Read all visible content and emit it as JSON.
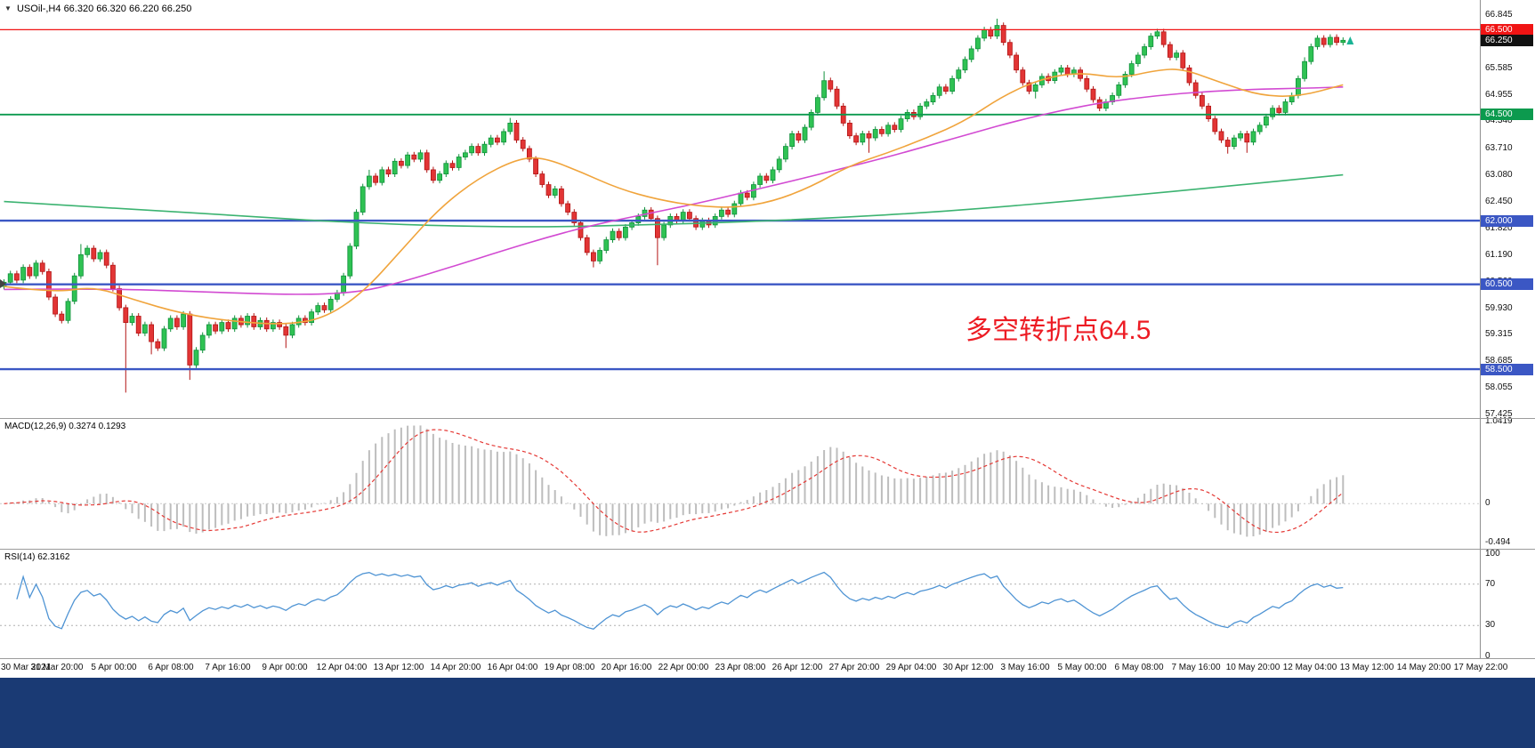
{
  "header": {
    "collapse_icon": "▼",
    "symbol": "USOil-,H4",
    "ohlc": "66.320 66.320 66.220 66.250"
  },
  "window": {
    "bottom_bar_color": "#1a3a74"
  },
  "chart_data": {
    "type": "candlestick",
    "symbol": "USOil",
    "timeframe": "H4",
    "colors": {
      "bull": "#2fc253",
      "bull_border": "#11913c",
      "bear": "#e23535",
      "bear_border": "#b31414",
      "macd_hist": "#bdbdbd",
      "macd_signal": "#e53935",
      "rsi_line": "#4f94d4",
      "guide_dotted": "#b0b0b0",
      "annotation": "#ed1c24",
      "arrow": "#19b394",
      "left_marker": "#444444"
    },
    "price_axis_labels": [
      "66.845",
      "65.585",
      "64.955",
      "64.340",
      "63.710",
      "63.080",
      "62.450",
      "61.820",
      "61.190",
      "60.560",
      "59.930",
      "59.315",
      "58.685",
      "58.055",
      "57.425"
    ],
    "current_price": {
      "value": "66.250",
      "price": 66.25,
      "badge": "#111111"
    },
    "level_lines": [
      {
        "price": 66.5,
        "label": "66.500",
        "color": "#f01414",
        "width": 1.2
      },
      {
        "price": 64.5,
        "label": "64.500",
        "color": "#0c9a4e",
        "width": 1.8
      },
      {
        "price": 62.0,
        "label": "62.000",
        "color": "#3b57c4",
        "width": 2.4
      },
      {
        "price": 60.5,
        "label": "60.500",
        "color": "#3b57c4",
        "width": 2.4
      },
      {
        "price": 58.5,
        "label": "58.500",
        "color": "#3b57c4",
        "width": 2.4
      }
    ],
    "candles": {
      "first_open": 60.45,
      "wick": 0.07,
      "wicks_up": {
        "12": 0.25,
        "57": 0.15,
        "79": 0.12,
        "128": 0.22,
        "155": 0.16,
        "180": 0.07,
        "203": 0.1
      },
      "wicks_down": {
        "19": 1.65,
        "23": 0.3,
        "29": 0.35,
        "44": 0.3,
        "92": 0.15,
        "102": 0.65,
        "135": 0.35,
        "161": 0.17,
        "191": 0.17,
        "194": 0.25
      },
      "closes": [
        60.55,
        60.75,
        60.6,
        60.9,
        60.7,
        61.0,
        60.8,
        60.2,
        59.8,
        59.65,
        60.1,
        60.7,
        61.2,
        61.35,
        61.1,
        61.25,
        60.95,
        60.4,
        59.95,
        59.6,
        59.75,
        59.35,
        59.55,
        59.15,
        59.0,
        59.45,
        59.7,
        59.5,
        59.8,
        58.6,
        58.95,
        59.3,
        59.55,
        59.4,
        59.6,
        59.45,
        59.7,
        59.55,
        59.75,
        59.5,
        59.65,
        59.45,
        59.6,
        59.5,
        59.3,
        59.55,
        59.7,
        59.6,
        59.85,
        60.0,
        59.9,
        60.15,
        60.3,
        60.7,
        61.4,
        62.2,
        62.8,
        63.05,
        62.9,
        63.2,
        63.1,
        63.4,
        63.3,
        63.55,
        63.45,
        63.6,
        63.2,
        62.95,
        63.1,
        63.35,
        63.25,
        63.5,
        63.6,
        63.75,
        63.6,
        63.8,
        63.95,
        63.85,
        64.1,
        64.3,
        63.9,
        63.7,
        63.45,
        63.1,
        62.85,
        62.6,
        62.75,
        62.4,
        62.2,
        61.95,
        61.6,
        61.25,
        61.05,
        61.3,
        61.55,
        61.75,
        61.6,
        61.85,
        61.95,
        62.1,
        62.25,
        62.05,
        61.6,
        61.9,
        62.1,
        62.0,
        62.2,
        62.05,
        61.85,
        62.0,
        61.9,
        62.1,
        62.25,
        62.15,
        62.4,
        62.65,
        62.55,
        62.85,
        63.05,
        62.95,
        63.2,
        63.45,
        63.75,
        64.05,
        63.9,
        64.2,
        64.55,
        64.9,
        65.3,
        65.1,
        64.7,
        64.3,
        64.0,
        63.85,
        64.05,
        63.95,
        64.15,
        64.05,
        64.25,
        64.15,
        64.4,
        64.55,
        64.45,
        64.7,
        64.8,
        64.95,
        65.15,
        65.05,
        65.35,
        65.55,
        65.8,
        66.05,
        66.3,
        66.5,
        66.35,
        66.6,
        66.2,
        65.9,
        65.55,
        65.25,
        65.05,
        65.2,
        65.4,
        65.3,
        65.5,
        65.6,
        65.45,
        65.55,
        65.35,
        65.1,
        64.85,
        64.65,
        64.8,
        64.95,
        65.2,
        65.45,
        65.7,
        65.9,
        66.1,
        66.35,
        66.45,
        66.15,
        65.85,
        65.95,
        65.6,
        65.25,
        64.95,
        64.7,
        64.4,
        64.1,
        63.9,
        63.75,
        63.95,
        64.05,
        63.85,
        64.1,
        64.25,
        64.45,
        64.65,
        64.55,
        64.8,
        64.95,
        65.35,
        65.75,
        66.1,
        66.3,
        66.15,
        66.32,
        66.2,
        66.25
      ]
    },
    "moving_averages": [
      {
        "name": "ma-green-slow",
        "color": "#3cb371",
        "points": [
          [
            0,
            62.45
          ],
          [
            20,
            62.28
          ],
          [
            40,
            62.08
          ],
          [
            55,
            61.95
          ],
          [
            70,
            61.87
          ],
          [
            85,
            61.85
          ],
          [
            100,
            61.9
          ],
          [
            115,
            61.97
          ],
          [
            130,
            62.07
          ],
          [
            145,
            62.2
          ],
          [
            160,
            62.38
          ],
          [
            175,
            62.58
          ],
          [
            190,
            62.8
          ],
          [
            200,
            62.95
          ],
          [
            209,
            63.08
          ]
        ]
      },
      {
        "name": "ma-magenta-medium",
        "color": "#d24ad2",
        "points": [
          [
            0,
            60.38
          ],
          [
            15,
            60.4
          ],
          [
            30,
            60.33
          ],
          [
            45,
            60.25
          ],
          [
            55,
            60.3
          ],
          [
            62,
            60.55
          ],
          [
            70,
            60.92
          ],
          [
            78,
            61.3
          ],
          [
            85,
            61.62
          ],
          [
            92,
            61.9
          ],
          [
            100,
            62.15
          ],
          [
            108,
            62.4
          ],
          [
            115,
            62.65
          ],
          [
            122,
            62.9
          ],
          [
            130,
            63.2
          ],
          [
            138,
            63.5
          ],
          [
            145,
            63.8
          ],
          [
            152,
            64.1
          ],
          [
            158,
            64.35
          ],
          [
            165,
            64.6
          ],
          [
            172,
            64.8
          ],
          [
            180,
            64.95
          ],
          [
            188,
            65.05
          ],
          [
            196,
            65.1
          ],
          [
            203,
            65.12
          ],
          [
            209,
            65.15
          ]
        ]
      },
      {
        "name": "ma-orange-fast",
        "color": "#f0a43c",
        "points": [
          [
            0,
            60.45
          ],
          [
            8,
            60.3
          ],
          [
            14,
            60.45
          ],
          [
            20,
            60.15
          ],
          [
            28,
            59.8
          ],
          [
            36,
            59.62
          ],
          [
            44,
            59.55
          ],
          [
            50,
            59.7
          ],
          [
            56,
            60.3
          ],
          [
            62,
            61.3
          ],
          [
            68,
            62.3
          ],
          [
            74,
            63.0
          ],
          [
            80,
            63.45
          ],
          [
            84,
            63.5
          ],
          [
            90,
            63.15
          ],
          [
            96,
            62.75
          ],
          [
            102,
            62.5
          ],
          [
            108,
            62.35
          ],
          [
            114,
            62.3
          ],
          [
            120,
            62.45
          ],
          [
            126,
            62.8
          ],
          [
            132,
            63.3
          ],
          [
            138,
            63.6
          ],
          [
            144,
            63.95
          ],
          [
            150,
            64.35
          ],
          [
            156,
            64.95
          ],
          [
            162,
            65.35
          ],
          [
            168,
            65.5
          ],
          [
            174,
            65.35
          ],
          [
            180,
            65.55
          ],
          [
            184,
            65.58
          ],
          [
            190,
            65.25
          ],
          [
            196,
            64.95
          ],
          [
            202,
            64.92
          ],
          [
            209,
            65.2
          ]
        ]
      }
    ],
    "macd": {
      "label": "MACD(12,26,9) 0.3274 0.1293",
      "fast": 12,
      "slow": 26,
      "signal": 9,
      "range": [
        -0.494,
        1.0419
      ],
      "axis": [
        {
          "text": "1.0419",
          "value": 1.0419
        },
        {
          "text": "0",
          "value": 0
        },
        {
          "text": "-0.494",
          "value": -0.494
        }
      ]
    },
    "rsi": {
      "label": "RSI(14) 62.3162",
      "period": 14,
      "range": [
        0,
        100
      ],
      "guides": [
        70,
        30
      ],
      "axis": [
        {
          "text": "100",
          "value": 100
        },
        {
          "text": "70",
          "value": 70
        },
        {
          "text": "30",
          "value": 30
        },
        {
          "text": "0",
          "value": 0
        }
      ]
    },
    "annotation": {
      "text": "多空转折点64.5"
    },
    "x_labels": [
      "30 Mar 2021",
      "31 Mar 20:00",
      "5 Apr 00:00",
      "6 Apr 08:00",
      "7 Apr 16:00",
      "9 Apr 00:00",
      "12 Apr 04:00",
      "13 Apr 12:00",
      "14 Apr 20:00",
      "16 Apr 04:00",
      "19 Apr 08:00",
      "20 Apr 16:00",
      "22 Apr 00:00",
      "23 Apr 08:00",
      "26 Apr 12:00",
      "27 Apr 20:00",
      "29 Apr 04:00",
      "30 Apr 12:00",
      "3 May 16:00",
      "5 May 00:00",
      "6 May 08:00",
      "7 May 16:00",
      "10 May 20:00",
      "12 May 04:00",
      "13 May 12:00",
      "14 May 20:00",
      "17 May 22:00"
    ]
  }
}
